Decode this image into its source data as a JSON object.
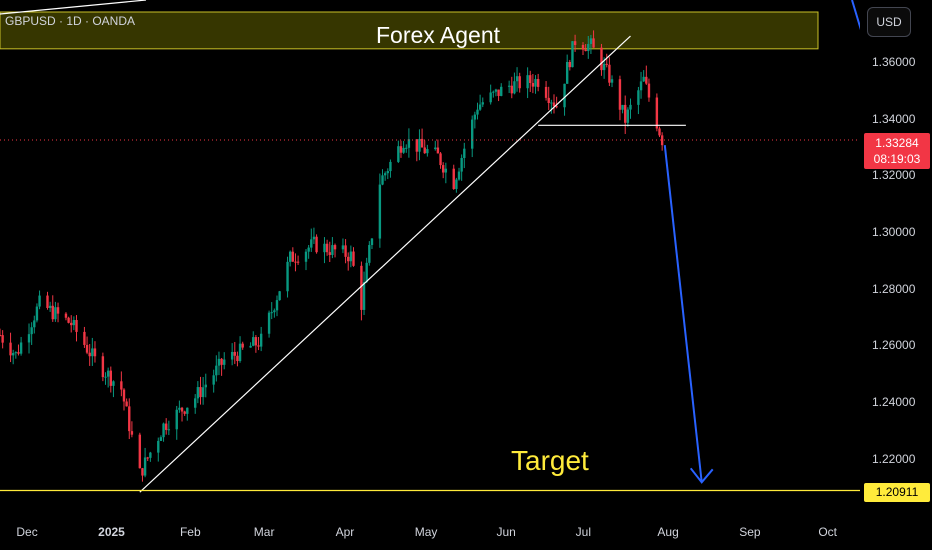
{
  "header": {
    "symbol": "GBPUSD · 1D · OANDA",
    "currency_button": "USD"
  },
  "annotations": {
    "title": "Forex Agent",
    "target_label": "Target"
  },
  "price_axis": {
    "ticks": [
      "1.36000",
      "1.34000",
      "1.32000",
      "1.30000",
      "1.28000",
      "1.26000",
      "1.24000",
      "1.22000"
    ],
    "current_price": "1.33284",
    "countdown": "08:19:03",
    "target_price": "1.20911"
  },
  "time_axis": {
    "ticks": [
      "Dec",
      "2025",
      "Feb",
      "Mar",
      "Apr",
      "May",
      "Jun",
      "Jul",
      "Aug",
      "Sep",
      "Oct"
    ]
  },
  "colors": {
    "up": "#089981",
    "down": "#f23645",
    "target": "#ffeb3b",
    "arrow": "#2962ff",
    "trendline": "#ffffff"
  },
  "chart_data": {
    "type": "candlestick",
    "title": "GBPUSD · 1D · OANDA",
    "ylim": [
      1.2,
      1.378
    ],
    "x_range": [
      "2024-11-21",
      "2025-10-13"
    ],
    "close_path": [
      [
        "2024-11-21",
        1.264
      ],
      [
        "2024-11-27",
        1.257
      ],
      [
        "2024-12-06",
        1.275
      ],
      [
        "2024-12-18",
        1.268
      ],
      [
        "2024-12-27",
        1.255
      ],
      [
        "2025-01-06",
        1.245
      ],
      [
        "2025-01-13",
        1.215
      ],
      [
        "2025-01-22",
        1.232
      ],
      [
        "2025-02-03",
        1.242
      ],
      [
        "2025-02-14",
        1.255
      ],
      [
        "2025-02-28",
        1.262
      ],
      [
        "2025-03-11",
        1.291
      ],
      [
        "2025-03-20",
        1.296
      ],
      [
        "2025-04-03",
        1.292
      ],
      [
        "2025-04-07",
        1.275
      ],
      [
        "2025-04-14",
        1.318
      ],
      [
        "2025-04-23",
        1.333
      ],
      [
        "2025-05-06",
        1.327
      ],
      [
        "2025-05-12",
        1.318
      ],
      [
        "2025-05-21",
        1.345
      ],
      [
        "2025-06-02",
        1.352
      ],
      [
        "2025-06-13",
        1.354
      ],
      [
        "2025-06-20",
        1.345
      ],
      [
        "2025-06-27",
        1.368
      ],
      [
        "2025-07-03",
        1.366
      ],
      [
        "2025-07-10",
        1.355
      ],
      [
        "2025-07-16",
        1.34
      ],
      [
        "2025-07-23",
        1.354
      ],
      [
        "2025-07-30",
        1.333
      ]
    ],
    "lines": [
      {
        "name": "trendline",
        "from": [
          "2025-01-13",
          1.2085
        ],
        "to": [
          "2025-07-18",
          1.3695
        ]
      },
      {
        "name": "neckline",
        "from": [
          "2025-06-13",
          1.338
        ],
        "to": [
          "2025-08-08",
          1.338
        ]
      },
      {
        "name": "target-line",
        "price": 1.20911
      }
    ],
    "projection_arrow": {
      "from": [
        "2025-07-31",
        1.331
      ],
      "to": [
        "2025-08-14",
        1.212
      ]
    },
    "zone": {
      "y_from": 1.365,
      "y_to": 1.378
    }
  }
}
